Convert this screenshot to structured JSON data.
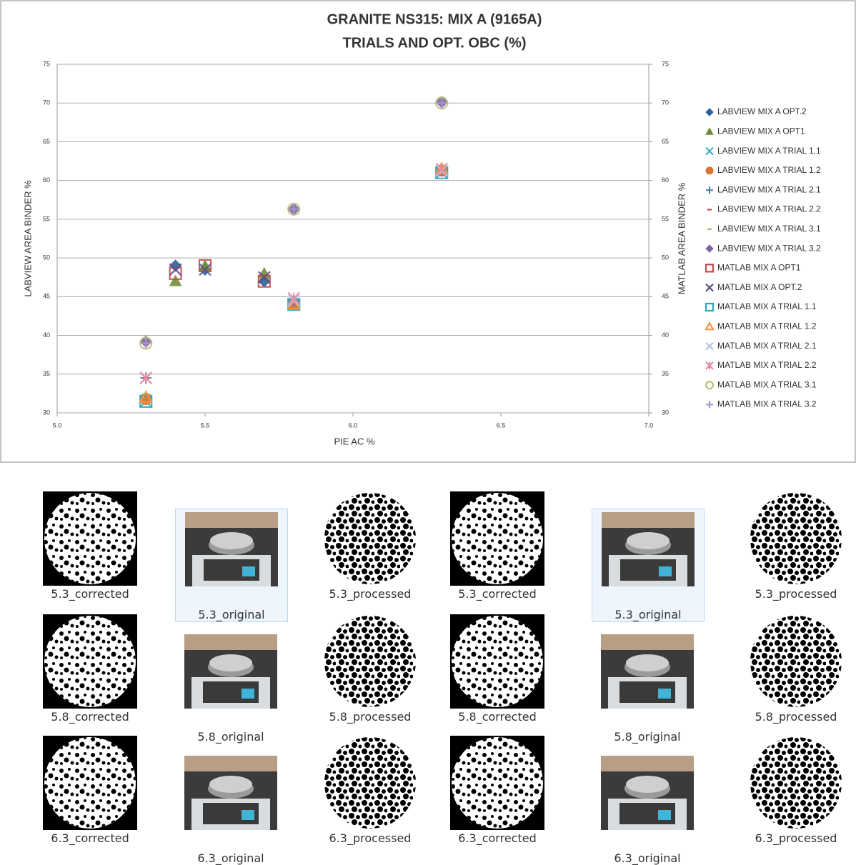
{
  "chart_data": {
    "type": "scatter",
    "title": "GRANITE NS315: MIX A  (9165A)",
    "subtitle": "TRIALS AND OPT. OBC (%)",
    "x_label": "PIE AC %",
    "y_label": "LABVIEW AREA BINDER %",
    "y2_label": "MATLAB AREA BINDER %",
    "xlim": [
      5,
      7
    ],
    "xticks": [
      {
        "value": 5,
        "label": "5.0"
      },
      {
        "value": 5.5,
        "label": "5.5"
      },
      {
        "value": 6,
        "label": "6.0"
      },
      {
        "value": 6.5,
        "label": "6.5"
      },
      {
        "value": 7,
        "label": "7.0"
      }
    ],
    "ylim": [
      30,
      75
    ],
    "yticks": [
      30,
      35,
      40,
      45,
      50,
      55,
      60,
      65,
      70,
      75
    ],
    "y2lim": [
      30,
      75
    ],
    "y2ticks": [
      30,
      35,
      40,
      45,
      50,
      55,
      60,
      65,
      70,
      75
    ],
    "grid": true,
    "legend": "right",
    "series": [
      {
        "name": "LABVIEW MIX A OPT.2",
        "color": "#2e5f9e",
        "marker": "diamond",
        "x": [
          5.4,
          5.5,
          5.7
        ],
        "values": [
          49,
          48.5,
          47
        ]
      },
      {
        "name": "LABVIEW MIX A OPT1",
        "color": "#6f8f3a",
        "marker": "triangle",
        "x": [
          5.4,
          5.5,
          5.7
        ],
        "values": [
          47,
          49,
          48
        ]
      },
      {
        "name": "LABVIEW MIX A TRIAL 1.1",
        "color": "#4bacc6",
        "marker": "x",
        "x": [
          5.3,
          5.8,
          6.3
        ],
        "values": [
          31.5,
          44,
          61
        ]
      },
      {
        "name": "LABVIEW MIX A TRIAL 1.2",
        "color": "#d8742c",
        "marker": "circle",
        "x": [
          5.3,
          5.8,
          6.3
        ],
        "values": [
          31.8,
          44,
          61.3
        ]
      },
      {
        "name": "LABVIEW MIX A TRIAL 2.1",
        "color": "#4f81bd",
        "marker": "plus",
        "x": [
          5.3,
          5.8,
          6.3
        ],
        "values": [
          34.5,
          44.5,
          61.3
        ]
      },
      {
        "name": "LABVIEW MIX A TRIAL 2.2",
        "color": "#c0504d",
        "marker": "dash",
        "x": [
          5.3,
          5.8,
          6.3
        ],
        "values": [
          34.5,
          44.8,
          61.5
        ]
      },
      {
        "name": "LABVIEW MIX A TRIAL 3.1",
        "color": "#9bbb59",
        "marker": "dash",
        "x": [
          5.3,
          5.8,
          6.3
        ],
        "values": [
          39.2,
          56.3,
          70.1
        ]
      },
      {
        "name": "LABVIEW MIX A TRIAL 3.2",
        "color": "#8064a2",
        "marker": "diamond",
        "x": [
          5.3,
          5.8,
          6.3
        ],
        "values": [
          39.2,
          56.3,
          70.1
        ]
      },
      {
        "name": "MATLAB MIX A OPT1",
        "color": "#c0504d",
        "marker": "square-open",
        "x": [
          5.4,
          5.5,
          5.7
        ],
        "values": [
          48,
          49,
          47
        ]
      },
      {
        "name": "MATLAB MIX A OPT.2",
        "color": "#5f4b8b",
        "marker": "x",
        "x": [
          5.4,
          5.5,
          5.7
        ],
        "values": [
          48.5,
          48.5,
          47.5
        ]
      },
      {
        "name": "MATLAB MIX A TRIAL 1.1",
        "color": "#31a3bd",
        "marker": "square-open",
        "x": [
          5.3,
          5.8,
          6.3
        ],
        "values": [
          31.5,
          44,
          61
        ]
      },
      {
        "name": "MATLAB MIX A TRIAL 1.2",
        "color": "#f79646",
        "marker": "triangle-open",
        "x": [
          5.3,
          5.8,
          6.3
        ],
        "values": [
          32,
          44,
          61.5
        ]
      },
      {
        "name": "MATLAB MIX A TRIAL 2.1",
        "color": "#b4c7e7",
        "marker": "x",
        "x": [
          5.3,
          5.8,
          6.3
        ],
        "values": [
          34.5,
          44.5,
          61.3
        ]
      },
      {
        "name": "MATLAB MIX A TRIAL 2.2",
        "color": "#e6899b",
        "marker": "asterisk",
        "x": [
          5.3,
          5.8,
          6.3
        ],
        "values": [
          34.5,
          44.8,
          61.5
        ]
      },
      {
        "name": "MATLAB MIX A TRIAL 3.1",
        "color": "#b5c27a",
        "marker": "circle-open",
        "x": [
          5.3,
          5.8,
          6.3
        ],
        "values": [
          39,
          56.3,
          70
        ]
      },
      {
        "name": "MATLAB MIX A TRIAL 3.2",
        "color": "#a99bc8",
        "marker": "plus",
        "x": [
          5.3,
          5.8,
          6.3
        ],
        "values": [
          39,
          56.3,
          70
        ]
      }
    ]
  },
  "file_view": {
    "items": [
      {
        "label": "5.3_corrected"
      },
      {
        "label": "5.3_original"
      },
      {
        "label": "5.3_processed"
      },
      {
        "label": "5.3_corrected"
      },
      {
        "label": "5.3_original"
      },
      {
        "label": "5.3_processed"
      },
      {
        "label": "5.8_corrected"
      },
      {
        "label": "5.8_original"
      },
      {
        "label": "5.8_processed"
      },
      {
        "label": "5.8_corrected"
      },
      {
        "label": "5.8_original"
      },
      {
        "label": "5.8_processed"
      },
      {
        "label": "6.3_corrected"
      },
      {
        "label": "6.3_original"
      },
      {
        "label": "6.3_processed"
      },
      {
        "label": "6.3_corrected"
      },
      {
        "label": "6.3_original"
      },
      {
        "label": "6.3_processed"
      }
    ]
  }
}
